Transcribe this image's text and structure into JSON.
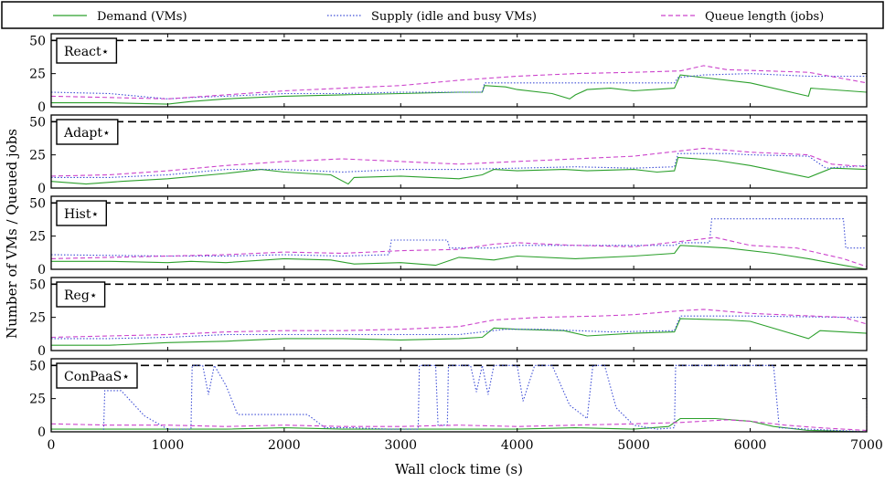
{
  "chart_data": {
    "type": "line",
    "xlabel": "Wall clock time (s)",
    "ylabel": "Number of VMs / Queued jobs",
    "xlim": [
      0,
      7000
    ],
    "ylim": [
      0,
      55
    ],
    "xticks": [
      "0",
      "1000",
      "2000",
      "3000",
      "4000",
      "5000",
      "6000",
      "7000"
    ],
    "yticks": [
      "0",
      "25",
      "50"
    ],
    "reference_line": 50,
    "legend": [
      {
        "label": "Demand (VMs)",
        "color": "#2ca02c",
        "dash": "solid"
      },
      {
        "label": "Supply (idle and busy VMs)",
        "color": "#3f4fd6",
        "dash": "dotted"
      },
      {
        "label": "Queue length (jobs)",
        "color": "#cc44cc",
        "dash": "dashed"
      }
    ],
    "panels": [
      {
        "label": "React⋆",
        "demand": [
          [
            0,
            3
          ],
          [
            500,
            3
          ],
          [
            1000,
            2
          ],
          [
            1200,
            4
          ],
          [
            1500,
            6
          ],
          [
            2000,
            8
          ],
          [
            2500,
            9
          ],
          [
            3000,
            10
          ],
          [
            3500,
            11
          ],
          [
            3700,
            11
          ],
          [
            3720,
            16
          ],
          [
            3900,
            15
          ],
          [
            4000,
            13
          ],
          [
            4300,
            10
          ],
          [
            4450,
            6
          ],
          [
            4500,
            9
          ],
          [
            4600,
            13
          ],
          [
            4800,
            14
          ],
          [
            5000,
            12
          ],
          [
            5350,
            14
          ],
          [
            5400,
            24
          ],
          [
            5600,
            22
          ],
          [
            6000,
            18
          ],
          [
            6500,
            8
          ],
          [
            6520,
            14
          ],
          [
            7000,
            11
          ]
        ],
        "supply": [
          [
            0,
            11
          ],
          [
            500,
            10
          ],
          [
            1000,
            6
          ],
          [
            1200,
            7
          ],
          [
            1500,
            8
          ],
          [
            2000,
            10
          ],
          [
            2500,
            10
          ],
          [
            3000,
            11
          ],
          [
            3700,
            11
          ],
          [
            3720,
            18
          ],
          [
            4000,
            18
          ],
          [
            5350,
            18
          ],
          [
            5380,
            22
          ],
          [
            5600,
            24
          ],
          [
            6000,
            25
          ],
          [
            6500,
            23
          ],
          [
            7000,
            23
          ]
        ],
        "queue": [
          [
            0,
            8
          ],
          [
            500,
            7
          ],
          [
            1000,
            6
          ],
          [
            1500,
            9
          ],
          [
            2000,
            12
          ],
          [
            2500,
            14
          ],
          [
            3000,
            16
          ],
          [
            3500,
            20
          ],
          [
            4000,
            23
          ],
          [
            4500,
            25
          ],
          [
            5000,
            26
          ],
          [
            5400,
            27
          ],
          [
            5600,
            31
          ],
          [
            5800,
            28
          ],
          [
            6500,
            26
          ],
          [
            7000,
            18
          ]
        ]
      },
      {
        "label": "Adapt⋆",
        "demand": [
          [
            0,
            5
          ],
          [
            300,
            3
          ],
          [
            600,
            5
          ],
          [
            1000,
            7
          ],
          [
            1500,
            11
          ],
          [
            1800,
            14
          ],
          [
            2000,
            12
          ],
          [
            2400,
            10
          ],
          [
            2550,
            3
          ],
          [
            2600,
            8
          ],
          [
            3000,
            9
          ],
          [
            3500,
            7
          ],
          [
            3700,
            10
          ],
          [
            3800,
            14
          ],
          [
            4000,
            13
          ],
          [
            4400,
            14
          ],
          [
            4600,
            13
          ],
          [
            5000,
            14
          ],
          [
            5200,
            12
          ],
          [
            5350,
            13
          ],
          [
            5380,
            23
          ],
          [
            5700,
            21
          ],
          [
            6000,
            17
          ],
          [
            6500,
            8
          ],
          [
            6700,
            15
          ],
          [
            7000,
            14
          ]
        ],
        "supply": [
          [
            0,
            8
          ],
          [
            500,
            8
          ],
          [
            1000,
            10
          ],
          [
            1500,
            14
          ],
          [
            2000,
            14
          ],
          [
            2500,
            12
          ],
          [
            3000,
            14
          ],
          [
            3500,
            14
          ],
          [
            4000,
            15
          ],
          [
            4500,
            16
          ],
          [
            5000,
            15
          ],
          [
            5350,
            16
          ],
          [
            5380,
            26
          ],
          [
            5800,
            26
          ],
          [
            6000,
            25
          ],
          [
            6500,
            24
          ],
          [
            6650,
            15
          ],
          [
            7000,
            17
          ]
        ],
        "queue": [
          [
            0,
            9
          ],
          [
            500,
            10
          ],
          [
            1000,
            13
          ],
          [
            1500,
            17
          ],
          [
            2000,
            20
          ],
          [
            2500,
            22
          ],
          [
            3000,
            20
          ],
          [
            3500,
            18
          ],
          [
            4000,
            20
          ],
          [
            4500,
            22
          ],
          [
            5000,
            24
          ],
          [
            5400,
            28
          ],
          [
            5600,
            30
          ],
          [
            6000,
            27
          ],
          [
            6500,
            25
          ],
          [
            6700,
            18
          ],
          [
            7000,
            16
          ]
        ]
      },
      {
        "label": "Hist⋆",
        "demand": [
          [
            0,
            6
          ],
          [
            500,
            6
          ],
          [
            1000,
            5
          ],
          [
            1200,
            6
          ],
          [
            1500,
            5
          ],
          [
            2000,
            8
          ],
          [
            2400,
            7
          ],
          [
            2600,
            4
          ],
          [
            3000,
            5
          ],
          [
            3300,
            3
          ],
          [
            3500,
            9
          ],
          [
            3800,
            7
          ],
          [
            4000,
            10
          ],
          [
            4500,
            8
          ],
          [
            5000,
            10
          ],
          [
            5350,
            12
          ],
          [
            5400,
            18
          ],
          [
            5800,
            16
          ],
          [
            6200,
            12
          ],
          [
            6500,
            8
          ],
          [
            6800,
            3
          ],
          [
            7000,
            0
          ]
        ],
        "supply": [
          [
            0,
            11
          ],
          [
            1000,
            10
          ],
          [
            1500,
            10
          ],
          [
            2000,
            11
          ],
          [
            2500,
            10
          ],
          [
            2900,
            11
          ],
          [
            2920,
            22
          ],
          [
            3400,
            22
          ],
          [
            3420,
            16
          ],
          [
            3800,
            16
          ],
          [
            4000,
            18
          ],
          [
            5350,
            18
          ],
          [
            5400,
            20
          ],
          [
            5650,
            20
          ],
          [
            5670,
            38
          ],
          [
            6600,
            38
          ],
          [
            6800,
            38
          ],
          [
            6820,
            16
          ],
          [
            7000,
            16
          ]
        ],
        "queue": [
          [
            0,
            8
          ],
          [
            500,
            9
          ],
          [
            1000,
            10
          ],
          [
            1500,
            11
          ],
          [
            2000,
            13
          ],
          [
            2500,
            12
          ],
          [
            3000,
            14
          ],
          [
            3500,
            15
          ],
          [
            3800,
            19
          ],
          [
            4000,
            20
          ],
          [
            4500,
            18
          ],
          [
            5000,
            17
          ],
          [
            5400,
            21
          ],
          [
            5700,
            24
          ],
          [
            6000,
            18
          ],
          [
            6400,
            16
          ],
          [
            6800,
            8
          ],
          [
            7000,
            2
          ]
        ]
      },
      {
        "label": "Reg⋆",
        "demand": [
          [
            0,
            4
          ],
          [
            500,
            4
          ],
          [
            1000,
            6
          ],
          [
            1500,
            7
          ],
          [
            2000,
            9
          ],
          [
            2500,
            9
          ],
          [
            3000,
            8
          ],
          [
            3500,
            9
          ],
          [
            3700,
            10
          ],
          [
            3800,
            17
          ],
          [
            4000,
            16
          ],
          [
            4400,
            15
          ],
          [
            4600,
            11
          ],
          [
            5000,
            13
          ],
          [
            5350,
            14
          ],
          [
            5400,
            24
          ],
          [
            5800,
            23
          ],
          [
            6000,
            22
          ],
          [
            6500,
            9
          ],
          [
            6600,
            15
          ],
          [
            7000,
            13
          ]
        ],
        "supply": [
          [
            0,
            9
          ],
          [
            500,
            9
          ],
          [
            1000,
            10
          ],
          [
            1500,
            12
          ],
          [
            2000,
            12
          ],
          [
            2500,
            12
          ],
          [
            3000,
            12
          ],
          [
            3500,
            12
          ],
          [
            3700,
            14
          ],
          [
            3900,
            16
          ],
          [
            4200,
            16
          ],
          [
            4800,
            14
          ],
          [
            5350,
            15
          ],
          [
            5400,
            26
          ],
          [
            6000,
            26
          ],
          [
            6800,
            25
          ],
          [
            7000,
            25
          ]
        ],
        "queue": [
          [
            0,
            10
          ],
          [
            500,
            11
          ],
          [
            1000,
            12
          ],
          [
            1500,
            14
          ],
          [
            2000,
            15
          ],
          [
            2500,
            15
          ],
          [
            3000,
            16
          ],
          [
            3500,
            18
          ],
          [
            3800,
            23
          ],
          [
            4200,
            25
          ],
          [
            4700,
            26
          ],
          [
            5000,
            27
          ],
          [
            5400,
            30
          ],
          [
            5600,
            31
          ],
          [
            6000,
            28
          ],
          [
            6800,
            25
          ],
          [
            7000,
            20
          ]
        ]
      },
      {
        "label": "ConPaaS⋆",
        "demand": [
          [
            0,
            2
          ],
          [
            500,
            2
          ],
          [
            1000,
            2
          ],
          [
            1500,
            2
          ],
          [
            2000,
            3
          ],
          [
            2500,
            2
          ],
          [
            3000,
            2
          ],
          [
            3500,
            2
          ],
          [
            4000,
            2
          ],
          [
            4500,
            3
          ],
          [
            5000,
            2
          ],
          [
            5300,
            4
          ],
          [
            5400,
            10
          ],
          [
            5700,
            10
          ],
          [
            6000,
            8
          ],
          [
            6200,
            4
          ],
          [
            6500,
            1
          ],
          [
            7000,
            0
          ]
        ],
        "supply": [
          [
            0,
            0
          ],
          [
            450,
            0
          ],
          [
            460,
            31
          ],
          [
            600,
            31
          ],
          [
            800,
            12
          ],
          [
            1000,
            2
          ],
          [
            1200,
            2
          ],
          [
            1210,
            50
          ],
          [
            1300,
            50
          ],
          [
            1350,
            28
          ],
          [
            1400,
            50
          ],
          [
            1500,
            35
          ],
          [
            1600,
            13
          ],
          [
            2200,
            13
          ],
          [
            2350,
            3
          ],
          [
            2600,
            3
          ],
          [
            2900,
            2
          ],
          [
            3150,
            2
          ],
          [
            3160,
            50
          ],
          [
            3300,
            50
          ],
          [
            3320,
            5
          ],
          [
            3400,
            5
          ],
          [
            3410,
            50
          ],
          [
            3600,
            50
          ],
          [
            3650,
            30
          ],
          [
            3700,
            50
          ],
          [
            3750,
            28
          ],
          [
            3800,
            50
          ],
          [
            4000,
            50
          ],
          [
            4050,
            23
          ],
          [
            4150,
            50
          ],
          [
            4300,
            50
          ],
          [
            4450,
            20
          ],
          [
            4600,
            10
          ],
          [
            4650,
            50
          ],
          [
            4750,
            50
          ],
          [
            4850,
            18
          ],
          [
            5000,
            5
          ],
          [
            5200,
            2
          ],
          [
            5350,
            3
          ],
          [
            5360,
            50
          ],
          [
            6200,
            50
          ],
          [
            6250,
            3
          ],
          [
            7000,
            0
          ],
          [
            7000,
            25
          ]
        ],
        "queue": [
          [
            0,
            6
          ],
          [
            500,
            5
          ],
          [
            1000,
            5
          ],
          [
            1500,
            4
          ],
          [
            2000,
            5
          ],
          [
            2500,
            4
          ],
          [
            3000,
            4
          ],
          [
            3500,
            5
          ],
          [
            4000,
            4
          ],
          [
            4500,
            5
          ],
          [
            5000,
            6
          ],
          [
            5400,
            7
          ],
          [
            5800,
            9
          ],
          [
            6000,
            8
          ],
          [
            6300,
            5
          ],
          [
            6600,
            3
          ],
          [
            7000,
            1
          ]
        ]
      }
    ]
  }
}
